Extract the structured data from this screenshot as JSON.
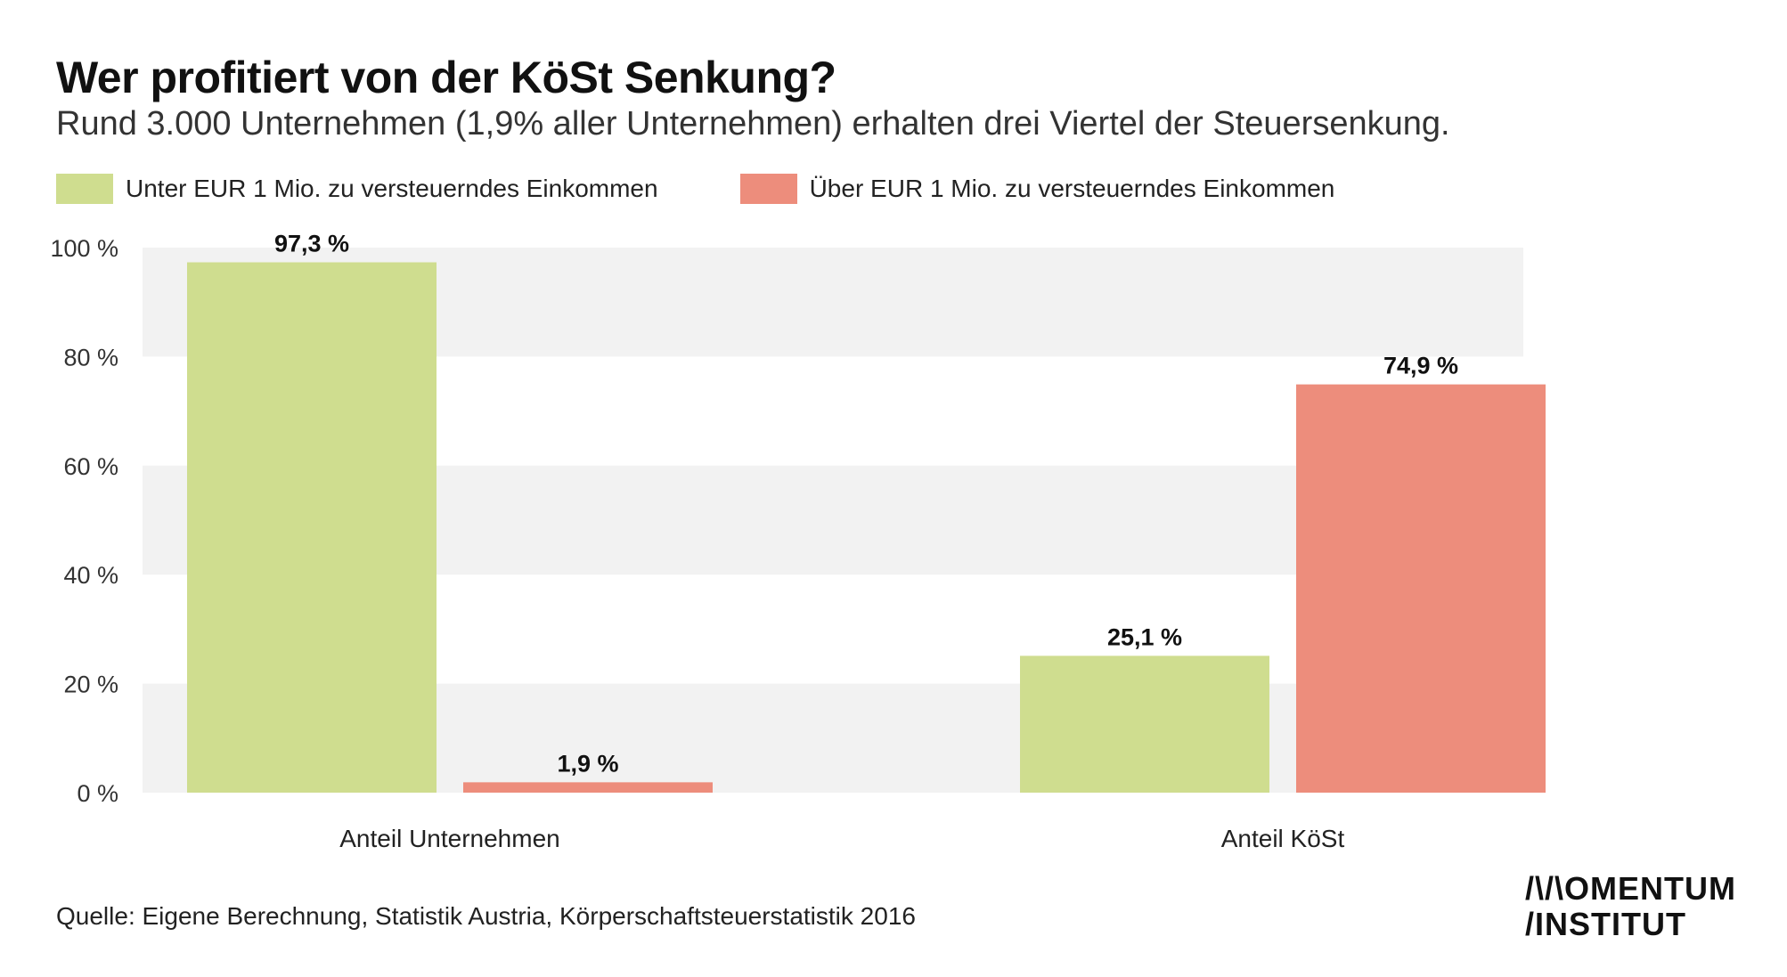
{
  "title": "Wer profitiert von der KöSt Senkung?",
  "subtitle": "Rund 3.000 Unternehmen (1,9% aller Unternehmen) erhalten drei Viertel der Steuersenkung.",
  "source": "Quelle: Eigene Berechnung, Statistik Austria, Körperschaftsteuerstatistik 2016",
  "logo": {
    "line1": "/\\/\\OMENTUM",
    "line2": "/INSTITUT"
  },
  "colors": {
    "series_under": "#cfdd8f",
    "series_over": "#ed8d7c",
    "band": "#f2f2f2",
    "text": "#111111"
  },
  "chart_data": {
    "type": "bar",
    "categories": [
      "Anteil Unternehmen",
      "Anteil KöSt"
    ],
    "series": [
      {
        "name": "Unter EUR 1 Mio. zu versteuerndes Einkommen",
        "values": [
          97.3,
          25.1
        ],
        "labels": [
          "97,3 %",
          "25,1 %"
        ]
      },
      {
        "name": "Über EUR 1 Mio. zu versteuerndes Einkommen",
        "values": [
          1.9,
          74.9
        ],
        "labels": [
          "1,9 %",
          "74,9 %"
        ]
      }
    ],
    "yticks": [
      0,
      20,
      40,
      60,
      80,
      100
    ],
    "ytick_labels": [
      "0 %",
      "20 %",
      "40 %",
      "60 %",
      "80 %",
      "100 %"
    ],
    "ylim": [
      0,
      100
    ],
    "grid": "alternating horizontal bands",
    "legend": "top-left"
  }
}
